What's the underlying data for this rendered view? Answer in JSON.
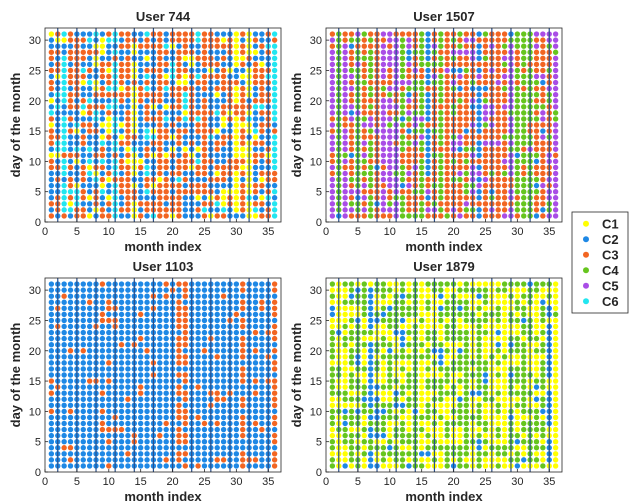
{
  "legend": {
    "placement": "right",
    "items": [
      {
        "label": "C1",
        "color": "#ffff00"
      },
      {
        "label": "C2",
        "color": "#1e88e5"
      },
      {
        "label": "C3",
        "color": "#f26522"
      },
      {
        "label": "C4",
        "color": "#66c51e"
      },
      {
        "label": "C5",
        "color": "#a94de6"
      },
      {
        "label": "C6",
        "color": "#22e6f0"
      }
    ]
  },
  "chart_data": [
    {
      "type": "scatter",
      "title": "User 744",
      "xlabel": "month index",
      "ylabel": "day of the month",
      "xlim": [
        0,
        37
      ],
      "ylim": [
        0,
        32
      ],
      "xticks": [
        "0",
        "5",
        "10",
        "15",
        "20",
        "25",
        "30",
        "35"
      ],
      "yticks": [
        "0",
        "5",
        "10",
        "15",
        "20",
        "25",
        "30"
      ],
      "mix": {
        "C1": 0.1,
        "C2": 0.38,
        "C3": 0.44,
        "C6": 0.08
      },
      "month_boundaries": [
        2,
        5,
        8,
        11,
        14,
        17,
        20,
        23,
        26,
        29,
        32,
        35
      ],
      "grid": false
    },
    {
      "type": "scatter",
      "title": "User 1507",
      "xlabel": "month index",
      "ylabel": "day of the month",
      "xlim": [
        0,
        37
      ],
      "ylim": [
        0,
        32
      ],
      "xticks": [
        "0",
        "5",
        "10",
        "15",
        "20",
        "25",
        "30",
        "35"
      ],
      "yticks": [
        "0",
        "5",
        "10",
        "15",
        "20",
        "25",
        "30"
      ],
      "mix": {
        "C2": 0.05,
        "C3": 0.6,
        "C4": 0.15,
        "C5": 0.2
      },
      "month_boundaries": [
        2,
        5,
        8,
        11,
        14,
        17,
        20,
        23,
        26,
        29,
        32,
        35
      ],
      "grid": false
    },
    {
      "type": "scatter",
      "title": "User 1103",
      "xlabel": "month index",
      "ylabel": "day of the month",
      "xlim": [
        0,
        37
      ],
      "ylim": [
        0,
        32
      ],
      "xticks": [
        "0",
        "5",
        "10",
        "15",
        "20",
        "25",
        "30",
        "35"
      ],
      "yticks": [
        "0",
        "5",
        "10",
        "15",
        "20",
        "25",
        "30"
      ],
      "mix": {
        "C2": 0.88,
        "C3": 0.12
      },
      "month_boundaries": [
        2,
        5,
        8,
        11,
        14,
        17,
        20,
        23,
        26,
        29,
        32,
        35
      ],
      "grid": false
    },
    {
      "type": "scatter",
      "title": "User 1879",
      "xlabel": "month index",
      "ylabel": "day of the month",
      "xlim": [
        0,
        37
      ],
      "ylim": [
        0,
        32
      ],
      "xticks": [
        "0",
        "5",
        "10",
        "15",
        "20",
        "25",
        "30",
        "35"
      ],
      "yticks": [
        "0",
        "5",
        "10",
        "15",
        "20",
        "25",
        "30"
      ],
      "mix": {
        "C1": 0.42,
        "C2": 0.08,
        "C4": 0.5
      },
      "month_boundaries": [
        2,
        5,
        8,
        11,
        14,
        17,
        20,
        23,
        26,
        29,
        32,
        35
      ],
      "grid": false
    }
  ]
}
